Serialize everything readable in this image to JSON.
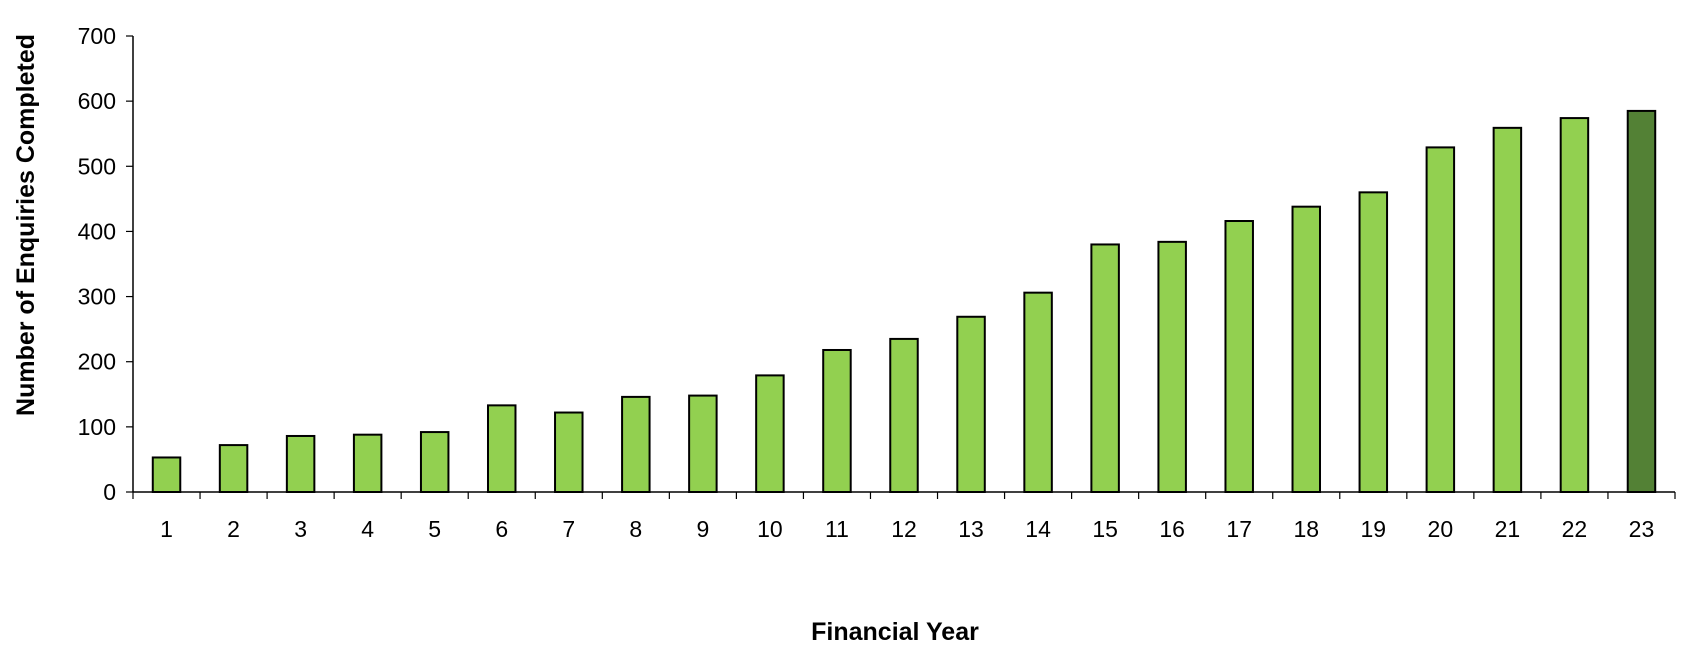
{
  "chart_data": {
    "type": "bar",
    "categories": [
      "1",
      "2",
      "3",
      "4",
      "5",
      "6",
      "7",
      "8",
      "9",
      "10",
      "11",
      "12",
      "13",
      "14",
      "15",
      "16",
      "17",
      "18",
      "19",
      "20",
      "21",
      "22",
      "23"
    ],
    "values": [
      53,
      72,
      86,
      88,
      92,
      133,
      122,
      146,
      148,
      179,
      218,
      235,
      269,
      306,
      380,
      384,
      416,
      438,
      460,
      529,
      559,
      574,
      585
    ],
    "xlabel": "Financial Year",
    "ylabel": "Number of Enquiries Completed",
    "ylim": [
      0,
      700
    ],
    "yticks": [
      0,
      100,
      200,
      300,
      400,
      500,
      600,
      700
    ],
    "grid": false,
    "colors": {
      "bar": "#92d050",
      "highlight_bar": "#538135",
      "highlight_index": 22
    }
  }
}
